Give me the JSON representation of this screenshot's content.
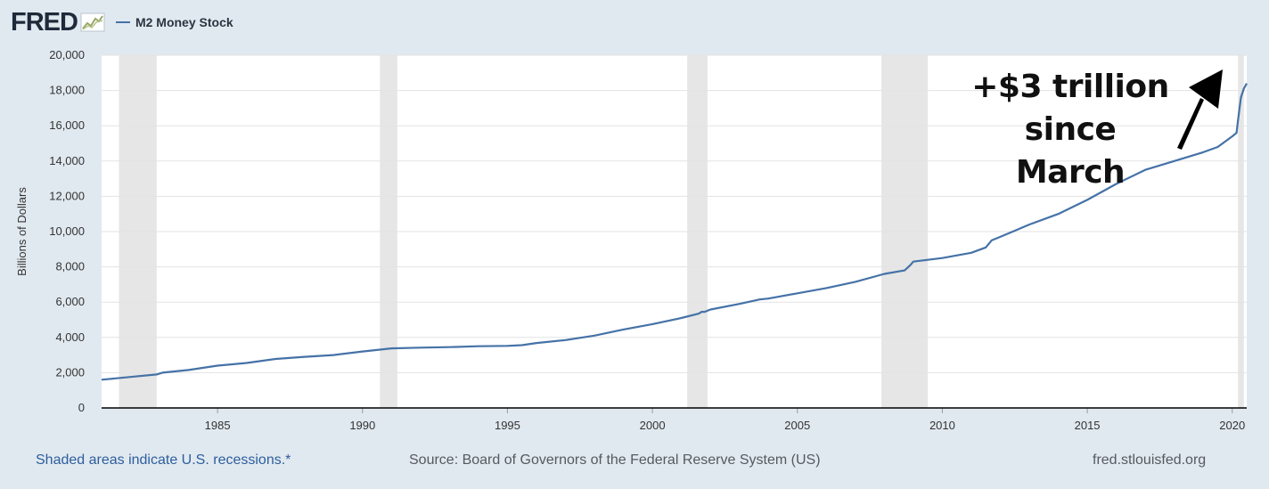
{
  "header": {
    "logo_text": "FRED",
    "logo_icon": "line-chart-icon",
    "legend_label": "M2 Money Stock"
  },
  "annotation": {
    "line1": "+$3 trillion",
    "line2": "since March"
  },
  "footer": {
    "recessions_note": "Shaded areas indicate U.S. recessions.*",
    "source": "Source: Board of Governors of the Federal Reserve System (US)",
    "site": "fred.stlouisfed.org"
  },
  "colors": {
    "series": "#4572a7",
    "recession": "#e6e6e6",
    "background": "#e1e9f0",
    "plot_bg": "#ffffff"
  },
  "chart_data": {
    "type": "line",
    "title": "",
    "ylabel": "Billions of Dollars",
    "xlabel": "",
    "xlim": [
      1981.0,
      2020.5
    ],
    "ylim": [
      0,
      20000
    ],
    "y_ticks": [
      0,
      2000,
      4000,
      6000,
      8000,
      10000,
      12000,
      14000,
      16000,
      18000,
      20000
    ],
    "y_tick_labels": [
      "0",
      "2,000",
      "4,000",
      "6,000",
      "8,000",
      "10,000",
      "12,000",
      "14,000",
      "16,000",
      "18,000",
      "20,000"
    ],
    "x_ticks": [
      1985,
      1990,
      1995,
      2000,
      2005,
      2010,
      2015,
      2020
    ],
    "x_tick_labels": [
      "1985",
      "1990",
      "1995",
      "2000",
      "2005",
      "2010",
      "2015",
      "2020"
    ],
    "grid": "horizontal",
    "recessions": [
      [
        1981.6,
        1982.9
      ],
      [
        1990.6,
        1991.2
      ],
      [
        2001.2,
        2001.9
      ],
      [
        2007.9,
        2009.5
      ],
      [
        2020.2,
        2020.4
      ]
    ],
    "series": [
      {
        "name": "M2 Money Stock",
        "x": [
          1981.0,
          1982.0,
          1982.9,
          1983.1,
          1984.0,
          1985.0,
          1986.0,
          1987.0,
          1988.0,
          1989.0,
          1990.0,
          1991.0,
          1992.0,
          1993.0,
          1994.0,
          1995.0,
          1995.5,
          1996.0,
          1997.0,
          1998.0,
          1999.0,
          2000.0,
          2001.0,
          2001.6,
          2001.7,
          2001.8,
          2002.0,
          2003.0,
          2003.7,
          2004.0,
          2005.0,
          2006.0,
          2007.0,
          2008.0,
          2008.7,
          2008.9,
          2009.0,
          2010.0,
          2011.0,
          2011.5,
          2011.7,
          2012.0,
          2013.0,
          2014.0,
          2015.0,
          2016.0,
          2017.0,
          2018.0,
          2019.0,
          2019.5,
          2020.0,
          2020.15,
          2020.2,
          2020.3,
          2020.4,
          2020.5
        ],
        "values": [
          1600,
          1760,
          1900,
          2000,
          2150,
          2400,
          2550,
          2780,
          2900,
          3000,
          3200,
          3380,
          3420,
          3450,
          3500,
          3520,
          3560,
          3680,
          3850,
          4100,
          4450,
          4750,
          5100,
          5350,
          5450,
          5450,
          5580,
          5900,
          6150,
          6200,
          6500,
          6800,
          7150,
          7600,
          7800,
          8100,
          8300,
          8500,
          8800,
          9100,
          9500,
          9700,
          10400,
          11000,
          11800,
          12700,
          13500,
          14000,
          14500,
          14800,
          15400,
          15600,
          16300,
          17600,
          18100,
          18400
        ]
      }
    ]
  }
}
